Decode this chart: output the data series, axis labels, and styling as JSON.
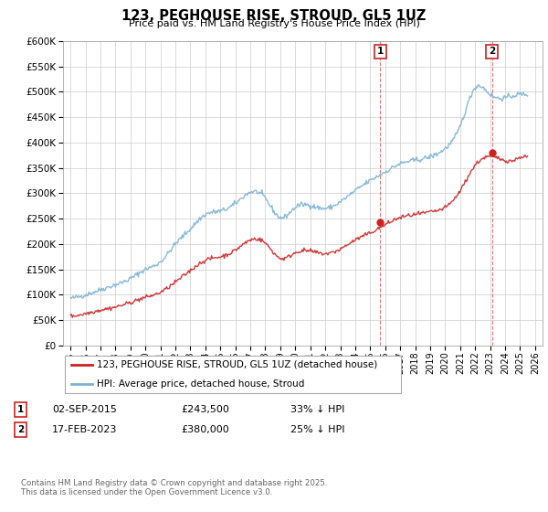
{
  "title": "123, PEGHOUSE RISE, STROUD, GL5 1UZ",
  "subtitle": "Price paid vs. HM Land Registry's House Price Index (HPI)",
  "legend_entry1": "123, PEGHOUSE RISE, STROUD, GL5 1UZ (detached house)",
  "legend_entry2": "HPI: Average price, detached house, Stroud",
  "transaction1_date": "02-SEP-2015",
  "transaction1_price": "£243,500",
  "transaction1_hpi": "33% ↓ HPI",
  "transaction2_date": "17-FEB-2023",
  "transaction2_price": "£380,000",
  "transaction2_hpi": "25% ↓ HPI",
  "footer": "Contains HM Land Registry data © Crown copyright and database right 2025.\nThis data is licensed under the Open Government Licence v3.0.",
  "hpi_color": "#7ab3d4",
  "price_color": "#cc2222",
  "marker1_x_year": 2015.67,
  "marker2_x_year": 2023.12,
  "marker1_y": 243500,
  "marker2_y": 380000,
  "ylim": [
    0,
    600000
  ],
  "xlim_start": 1994.5,
  "xlim_end": 2026.5,
  "background_color": "#ffffff",
  "grid_color": "#cccccc",
  "hpi_base_values": {
    "1995": 93000,
    "1996": 100000,
    "1997": 110000,
    "1998": 120000,
    "1999": 132000,
    "2000": 150000,
    "2001": 165000,
    "2002": 200000,
    "2003": 230000,
    "2004": 258000,
    "2005": 265000,
    "2006": 280000,
    "2007": 302000,
    "2008": 290000,
    "2009": 252000,
    "2010": 272000,
    "2011": 276000,
    "2012": 270000,
    "2013": 283000,
    "2014": 305000,
    "2015": 325000,
    "2016": 342000,
    "2017": 358000,
    "2018": 365000,
    "2019": 372000,
    "2020": 388000,
    "2021": 432000,
    "2022": 508000,
    "2023": 495000,
    "2024": 488000,
    "2025": 495000
  },
  "price_base_values": {
    "1995": 58000,
    "1996": 63000,
    "1997": 70000,
    "1998": 76000,
    "1999": 85000,
    "2000": 95000,
    "2001": 105000,
    "2002": 125000,
    "2003": 148000,
    "2004": 168000,
    "2005": 175000,
    "2006": 188000,
    "2007": 208000,
    "2008": 202000,
    "2009": 172000,
    "2010": 183000,
    "2011": 186000,
    "2012": 181000,
    "2013": 190000,
    "2014": 208000,
    "2015": 222000,
    "2016": 238000,
    "2017": 252000,
    "2018": 258000,
    "2019": 263000,
    "2020": 272000,
    "2021": 305000,
    "2022": 355000,
    "2023": 372000,
    "2024": 365000,
    "2025": 372000
  }
}
